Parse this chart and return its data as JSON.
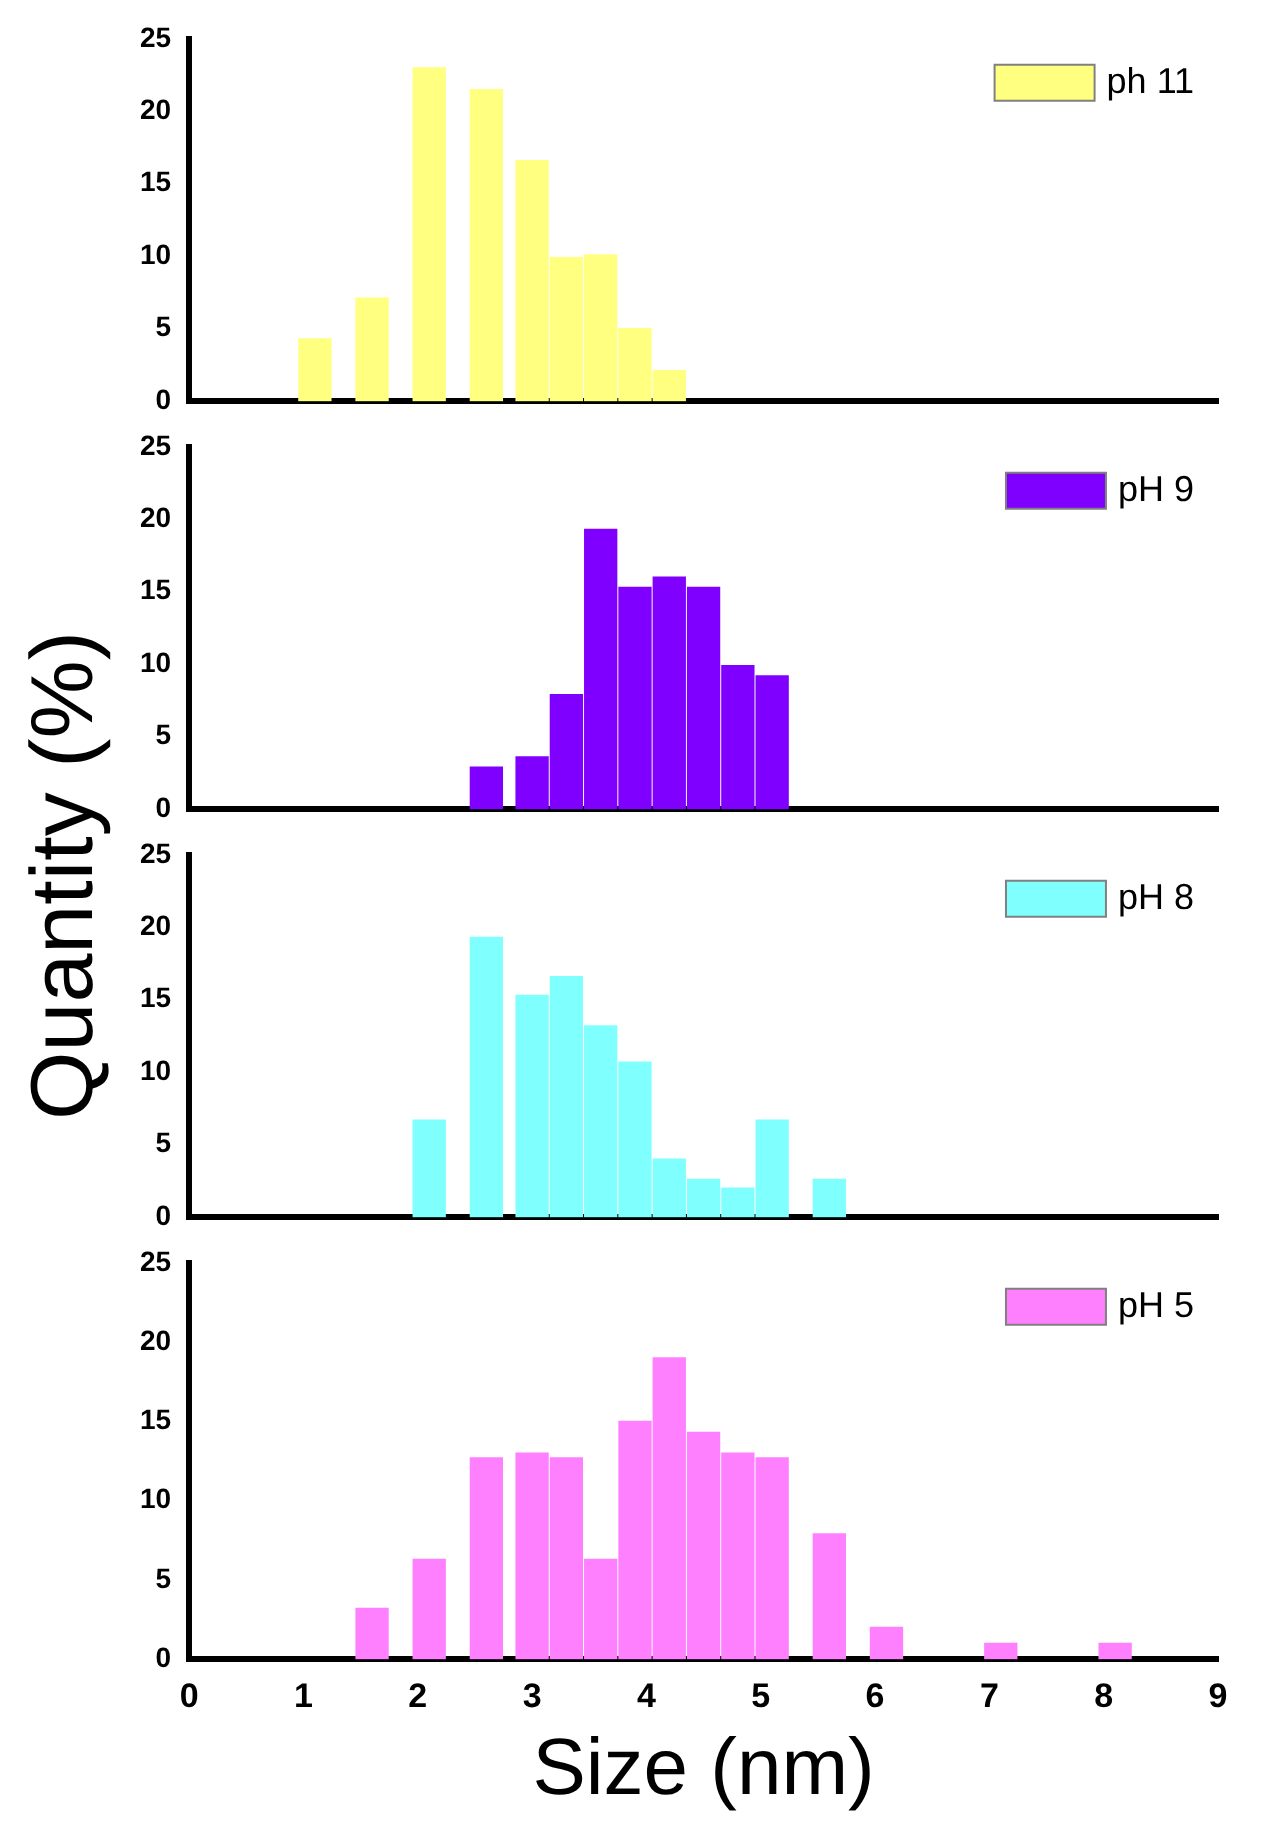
{
  "chart_data": [
    {
      "type": "bar",
      "x": [
        1.1,
        1.6,
        2.1,
        2.6,
        3.0,
        3.3,
        3.6,
        3.9,
        4.2
      ],
      "series": [
        {
          "name": "ph 11",
          "color": "#ffff80",
          "values": [
            4.3,
            7.1,
            23,
            21.5,
            16.6,
            9.9,
            10.1,
            5.0,
            2.1
          ]
        }
      ],
      "xlim": [
        0,
        9
      ],
      "xticks": [
        0,
        1,
        2,
        3,
        4,
        5,
        6,
        7,
        8,
        9
      ],
      "ylim": [
        0,
        25
      ],
      "yticks": [
        0,
        5,
        10,
        15,
        20,
        25
      ],
      "tick_labels": "y",
      "legend": "top right"
    },
    {
      "type": "bar",
      "x": [
        2.6,
        3.0,
        3.3,
        3.6,
        3.9,
        4.2,
        4.5,
        4.8,
        5.1
      ],
      "series": [
        {
          "name": "pH 9",
          "color": "#8000ff",
          "values": [
            2.9,
            3.6,
            7.9,
            19.3,
            15.3,
            16.0,
            15.3,
            9.9,
            9.2
          ]
        }
      ],
      "xlim": [
        0,
        9
      ],
      "xticks": [
        0,
        1,
        2,
        3,
        4,
        5,
        6,
        7,
        8,
        9
      ],
      "ylim": [
        0,
        25
      ],
      "yticks": [
        0,
        5,
        10,
        15,
        20,
        25
      ],
      "tick_labels": "y",
      "legend": "top right",
      "ylabel": "Quantity (%)"
    },
    {
      "type": "bar",
      "x": [
        2.1,
        2.6,
        3.0,
        3.3,
        3.6,
        3.9,
        4.2,
        4.5,
        4.8,
        5.1,
        5.6
      ],
      "series": [
        {
          "name": "pH 8",
          "color": "#80ffff",
          "values": [
            6.7,
            19.3,
            15.3,
            16.6,
            13.2,
            10.7,
            4.0,
            2.6,
            2.0,
            6.7,
            2.6
          ]
        }
      ],
      "xlim": [
        0,
        9
      ],
      "xticks": [
        0,
        1,
        2,
        3,
        4,
        5,
        6,
        7,
        8,
        9
      ],
      "ylim": [
        0,
        25
      ],
      "yticks": [
        0,
        5,
        10,
        15,
        20,
        25
      ],
      "tick_labels": "y",
      "legend": "top right"
    },
    {
      "type": "bar",
      "x": [
        1.6,
        2.1,
        2.6,
        3.0,
        3.3,
        3.6,
        3.9,
        4.2,
        4.5,
        4.8,
        5.1,
        5.6,
        6.1,
        7.1,
        8.1
      ],
      "series": [
        {
          "name": "pH 5",
          "color": "#ff80ff",
          "values": [
            3.2,
            6.3,
            12.7,
            13.0,
            12.7,
            6.3,
            15.0,
            19.0,
            14.3,
            13.0,
            12.7,
            7.9,
            2.0,
            1.0,
            1.0
          ]
        }
      ],
      "xlim": [
        0,
        9
      ],
      "xticks": [
        0,
        1,
        2,
        3,
        4,
        5,
        6,
        7,
        8,
        9
      ],
      "ylim": [
        0,
        25
      ],
      "yticks": [
        0,
        5,
        10,
        15,
        20,
        25
      ],
      "legend": "top right",
      "xlabel": "Size (nm)"
    }
  ]
}
